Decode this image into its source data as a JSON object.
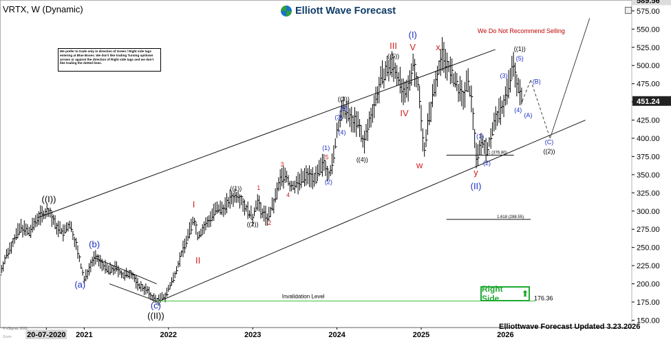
{
  "header": {
    "title": "VRTX, W (Dynamic)",
    "brand": "Elliott Wave Forecast",
    "warning": "We Do Not Recommend Selling",
    "disclaimer": "We prefer to trade only in direction of Green / Right side tags entering at Blue Boxes. We don't like trading Turning up/down arrows or against the direction of Right side tags and we don't like trading the dotted lines.",
    "right_side_label": "Right Side",
    "footer": "Elliottwave Forecast Updated 3.23.2026",
    "esignal": "© eSignal, 2026",
    "zoom": "Zoom"
  },
  "colors": {
    "blue_label": "#1a2fbf",
    "red_label": "#d21d1d",
    "green_line": "#3fbf3f",
    "bar": "#000000"
  },
  "chart_data": {
    "type": "ohlc",
    "y_axis_ticks": [
      150,
      175,
      200,
      225,
      250,
      275,
      300,
      325,
      350,
      375,
      400,
      425,
      450,
      475,
      500,
      525,
      550,
      575
    ],
    "ylim": [
      140,
      590
    ],
    "x_axis_labels": [
      "20-07-2020",
      "2021",
      "2022",
      "2023",
      "2024",
      "2025",
      "2026"
    ],
    "x_axis_dates": [
      2020.55,
      2021.0,
      2022.0,
      2023.0,
      2024.0,
      2025.0,
      2026.0
    ],
    "xlim": [
      2020.0,
      2027.5
    ],
    "price_boxes": [
      {
        "value": 589.56,
        "label": "589.56",
        "style": "top"
      },
      {
        "value": 451.24,
        "label": "451.24",
        "style": "last"
      }
    ],
    "price_path": [
      [
        2020.0,
        215
      ],
      [
        2020.08,
        240
      ],
      [
        2020.17,
        262
      ],
      [
        2020.25,
        278
      ],
      [
        2020.35,
        270
      ],
      [
        2020.45,
        292
      ],
      [
        2020.58,
        300
      ],
      [
        2020.66,
        280
      ],
      [
        2020.75,
        270
      ],
      [
        2020.83,
        282
      ],
      [
        2020.9,
        255
      ],
      [
        2021.0,
        205
      ],
      [
        2021.07,
        225
      ],
      [
        2021.12,
        236
      ],
      [
        2021.18,
        232
      ],
      [
        2021.28,
        218
      ],
      [
        2021.38,
        222
      ],
      [
        2021.47,
        210
      ],
      [
        2021.55,
        216
      ],
      [
        2021.64,
        198
      ],
      [
        2021.74,
        192
      ],
      [
        2021.8,
        182
      ],
      [
        2021.87,
        177
      ],
      [
        2021.96,
        183
      ],
      [
        2022.05,
        205
      ],
      [
        2022.15,
        240
      ],
      [
        2022.25,
        272
      ],
      [
        2022.3,
        290
      ],
      [
        2022.35,
        265
      ],
      [
        2022.45,
        282
      ],
      [
        2022.55,
        300
      ],
      [
        2022.65,
        304
      ],
      [
        2022.75,
        318
      ],
      [
        2022.83,
        322
      ],
      [
        2022.93,
        302
      ],
      [
        2023.0,
        290
      ],
      [
        2023.05,
        315
      ],
      [
        2023.1,
        300
      ],
      [
        2023.18,
        290
      ],
      [
        2023.25,
        310
      ],
      [
        2023.33,
        345
      ],
      [
        2023.4,
        350
      ],
      [
        2023.45,
        332
      ],
      [
        2023.55,
        340
      ],
      [
        2023.65,
        350
      ],
      [
        2023.75,
        345
      ],
      [
        2023.85,
        368
      ],
      [
        2023.9,
        350
      ],
      [
        2023.95,
        365
      ],
      [
        2024.0,
        410
      ],
      [
        2024.05,
        432
      ],
      [
        2024.1,
        440
      ],
      [
        2024.15,
        428
      ],
      [
        2024.25,
        420
      ],
      [
        2024.32,
        392
      ],
      [
        2024.4,
        430
      ],
      [
        2024.5,
        470
      ],
      [
        2024.55,
        488
      ],
      [
        2024.65,
        500
      ],
      [
        2024.72,
        488
      ],
      [
        2024.8,
        455
      ],
      [
        2024.85,
        470
      ],
      [
        2024.9,
        505
      ],
      [
        2024.97,
        470
      ],
      [
        2025.0,
        430
      ],
      [
        2025.03,
        382
      ],
      [
        2025.08,
        420
      ],
      [
        2025.15,
        465
      ],
      [
        2025.2,
        495
      ],
      [
        2025.25,
        515
      ],
      [
        2025.32,
        500
      ],
      [
        2025.37,
        485
      ],
      [
        2025.43,
        470
      ],
      [
        2025.5,
        455
      ],
      [
        2025.55,
        478
      ],
      [
        2025.6,
        452
      ],
      [
        2025.66,
        368
      ],
      [
        2025.7,
        395
      ],
      [
        2025.75,
        392
      ],
      [
        2025.78,
        378
      ],
      [
        2025.82,
        402
      ],
      [
        2025.88,
        425
      ],
      [
        2025.95,
        440
      ],
      [
        2026.0,
        455
      ],
      [
        2026.05,
        480
      ],
      [
        2026.1,
        500
      ],
      [
        2026.15,
        470
      ],
      [
        2026.2,
        451
      ]
    ],
    "channel_lines": [
      {
        "from": [
          2020.45,
          291
        ],
        "to": [
          2025.88,
          522
        ]
      },
      {
        "from": [
          2021.93,
          178
        ],
        "to": [
          2026.95,
          425
        ]
      }
    ],
    "projection_lines": [
      {
        "from": [
          2026.2,
          451
        ],
        "to": [
          2026.3,
          480
        ],
        "style": "dashed"
      },
      {
        "from": [
          2026.3,
          480
        ],
        "to": [
          2026.53,
          400
        ],
        "style": "dashed"
      },
      {
        "from": [
          2026.53,
          400
        ],
        "to": [
          2027.0,
          565
        ],
        "style": "solid"
      }
    ],
    "diagonal_lines": [
      {
        "from": [
          2021.12,
          236
        ],
        "to": [
          2021.86,
          200
        ]
      },
      {
        "from": [
          2021.3,
          200
        ],
        "to": [
          2021.86,
          176
        ]
      }
    ],
    "target_lines": [
      {
        "y": 376.8,
        "x1": 2025.3,
        "x2": 2026.1,
        "label": "1 (376.80)"
      },
      {
        "y": 288.55,
        "x1": 2025.3,
        "x2": 2026.3,
        "label": "1.618 (288.55)"
      }
    ],
    "invalidation": {
      "value": 176.36,
      "label": "Invalidation Level",
      "value_label": "176.36"
    },
    "wave_labels": [
      {
        "text": "((I))",
        "x": 2020.58,
        "y": 312,
        "color": "black",
        "size": 13
      },
      {
        "text": "(a)",
        "x": 2020.95,
        "y": 195,
        "color": "blue",
        "size": 13
      },
      {
        "text": "(b)",
        "x": 2021.12,
        "y": 250,
        "color": "blue",
        "size": 13
      },
      {
        "text": "(c)",
        "x": 2021.85,
        "y": 166,
        "color": "blue",
        "size": 13
      },
      {
        "text": "((II))",
        "x": 2021.85,
        "y": 152,
        "color": "black",
        "size": 13
      },
      {
        "text": "I",
        "x": 2022.3,
        "y": 305,
        "color": "red",
        "size": 13
      },
      {
        "text": "II",
        "x": 2022.35,
        "y": 228,
        "color": "red",
        "size": 13
      },
      {
        "text": "((1))",
        "x": 2022.8,
        "y": 328,
        "color": "black",
        "size": 9
      },
      {
        "text": "((2))",
        "x": 2023.0,
        "y": 279,
        "color": "black",
        "size": 9
      },
      {
        "text": "1",
        "x": 2023.07,
        "y": 329,
        "color": "red",
        "size": 9
      },
      {
        "text": "2",
        "x": 2023.2,
        "y": 281,
        "color": "red",
        "size": 9
      },
      {
        "text": "3",
        "x": 2023.35,
        "y": 361,
        "color": "red",
        "size": 9
      },
      {
        "text": "4",
        "x": 2023.42,
        "y": 319,
        "color": "red",
        "size": 9
      },
      {
        "text": "(1)",
        "x": 2023.87,
        "y": 384,
        "color": "blue",
        "size": 9
      },
      {
        "text": "5",
        "x": 2023.88,
        "y": 371,
        "color": "red",
        "size": 9
      },
      {
        "text": "(2)",
        "x": 2023.9,
        "y": 337,
        "color": "blue",
        "size": 9
      },
      {
        "text": "((3))",
        "x": 2024.08,
        "y": 451,
        "color": "black",
        "size": 9
      },
      {
        "text": "(5)",
        "x": 2024.08,
        "y": 438,
        "color": "blue",
        "size": 9
      },
      {
        "text": "(3)",
        "x": 2024.02,
        "y": 426,
        "color": "blue",
        "size": 9
      },
      {
        "text": "(4)",
        "x": 2024.06,
        "y": 405,
        "color": "blue",
        "size": 9
      },
      {
        "text": "((4))",
        "x": 2024.3,
        "y": 368,
        "color": "black",
        "size": 9
      },
      {
        "text": "((5))",
        "x": 2024.67,
        "y": 510,
        "color": "black",
        "size": 9
      },
      {
        "text": "III",
        "x": 2024.67,
        "y": 523,
        "color": "red",
        "size": 13
      },
      {
        "text": "IV",
        "x": 2024.8,
        "y": 430,
        "color": "red",
        "size": 13
      },
      {
        "text": "(I)",
        "x": 2024.9,
        "y": 538,
        "color": "blue",
        "size": 13
      },
      {
        "text": "V",
        "x": 2024.9,
        "y": 521,
        "color": "red",
        "size": 13
      },
      {
        "text": "w",
        "x": 2024.98,
        "y": 359,
        "color": "red",
        "size": 13
      },
      {
        "text": "x",
        "x": 2025.2,
        "y": 521,
        "color": "red",
        "size": 13
      },
      {
        "text": "(1)",
        "x": 2025.7,
        "y": 400,
        "color": "blue",
        "size": 9
      },
      {
        "text": "y",
        "x": 2025.65,
        "y": 349,
        "color": "red",
        "size": 13
      },
      {
        "text": "(2)",
        "x": 2025.78,
        "y": 363,
        "color": "blue",
        "size": 9
      },
      {
        "text": "(II)",
        "x": 2025.65,
        "y": 330,
        "color": "blue",
        "size": 13
      },
      {
        "text": "(3)",
        "x": 2025.98,
        "y": 483,
        "color": "blue",
        "size": 9
      },
      {
        "text": "((1))",
        "x": 2026.17,
        "y": 520,
        "color": "black",
        "size": 9
      },
      {
        "text": "(5)",
        "x": 2026.17,
        "y": 507,
        "color": "blue",
        "size": 9
      },
      {
        "text": "(4)",
        "x": 2026.15,
        "y": 436,
        "color": "blue",
        "size": 9
      },
      {
        "text": "(A)",
        "x": 2026.27,
        "y": 429,
        "color": "blue",
        "size": 9
      },
      {
        "text": "(B)",
        "x": 2026.37,
        "y": 475,
        "color": "blue",
        "size": 9
      },
      {
        "text": "(C)",
        "x": 2026.52,
        "y": 392,
        "color": "blue",
        "size": 9
      },
      {
        "text": "((2))",
        "x": 2026.52,
        "y": 379,
        "color": "black",
        "size": 9
      }
    ]
  }
}
